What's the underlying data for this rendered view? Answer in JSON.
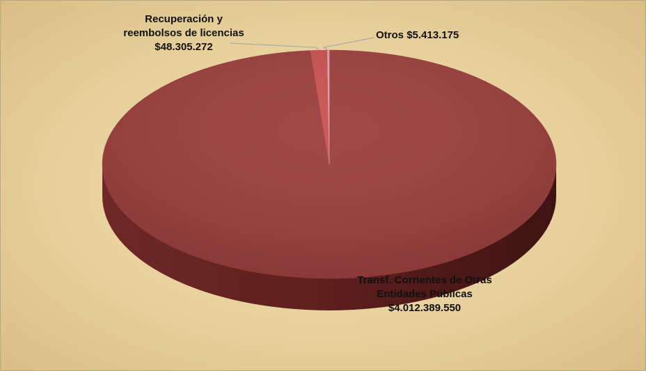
{
  "chart_data": {
    "type": "pie",
    "categories": [
      "Transf. Corrientes de Otras Entidades Públicas",
      "Recuperación y reembolsos de licencias",
      "Otros"
    ],
    "values": [
      4012389550,
      48305272,
      5413175
    ],
    "value_labels": [
      "$4.012.389.550",
      "$48.305.272",
      "$5.413.175"
    ],
    "colors": [
      "#9a3e3c",
      "#c9504e",
      "#e0a3a1"
    ]
  }
}
